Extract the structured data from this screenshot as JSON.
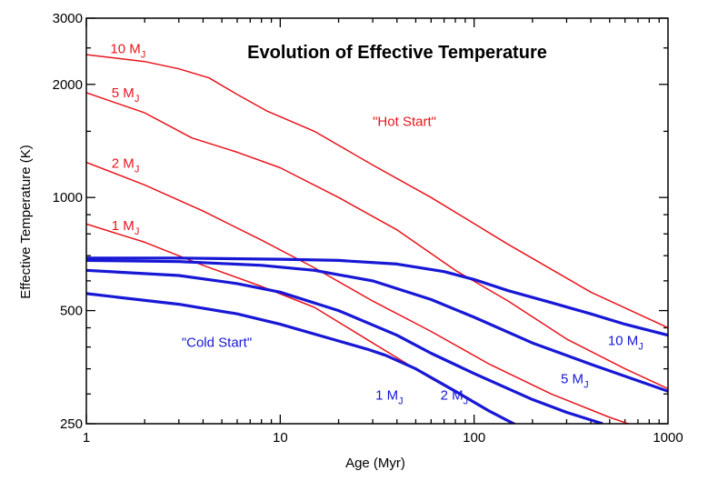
{
  "chart_data": {
    "type": "line",
    "title": "Evolution of Effective Temperature",
    "xlabel": "Age (Myr)",
    "ylabel": "Effective Temperature (K)",
    "xscale": "log",
    "yscale": "log",
    "xlim": [
      1,
      1000
    ],
    "ylim": [
      250,
      3000
    ],
    "x_ticks": [
      {
        "value": 1,
        "label": "1"
      },
      {
        "value": 10,
        "label": "10"
      },
      {
        "value": 100,
        "label": "100"
      },
      {
        "value": 1000,
        "label": "1000"
      }
    ],
    "y_ticks": [
      {
        "value": 250,
        "label": "250"
      },
      {
        "value": 500,
        "label": "500"
      },
      {
        "value": 1000,
        "label": "1000"
      },
      {
        "value": 2000,
        "label": "2000"
      },
      {
        "value": 3000,
        "label": "3000"
      }
    ],
    "colors": {
      "hot": "#e8141c",
      "cold": "#1717d6"
    },
    "series": [
      {
        "name": "10 MJ hot",
        "group": "hot",
        "x": [
          1,
          2,
          3,
          4.3,
          6,
          8.5,
          15,
          30,
          60,
          150,
          400,
          1000
        ],
        "y": [
          2400,
          2300,
          2200,
          2080,
          1880,
          1700,
          1500,
          1220,
          1000,
          750,
          560,
          450
        ]
      },
      {
        "name": "5 MJ hot",
        "group": "hot",
        "x": [
          1,
          2,
          3.5,
          6,
          10,
          20,
          40,
          80,
          150,
          300,
          600,
          1000
        ],
        "y": [
          1900,
          1680,
          1440,
          1320,
          1200,
          1000,
          820,
          640,
          530,
          420,
          350,
          310
        ]
      },
      {
        "name": "2 MJ hot",
        "group": "hot",
        "x": [
          1,
          2,
          4,
          8,
          15,
          30,
          60,
          120,
          250,
          500,
          1000
        ],
        "y": [
          1240,
          1080,
          920,
          770,
          650,
          530,
          440,
          360,
          300,
          260,
          230
        ]
      },
      {
        "name": "1 MJ hot",
        "group": "hot",
        "x": [
          1,
          2,
          4,
          8,
          15,
          30,
          60,
          120,
          250
        ],
        "y": [
          850,
          760,
          660,
          580,
          510,
          410,
          330,
          270,
          225
        ]
      },
      {
        "name": "10 MJ cold",
        "group": "cold",
        "x": [
          1,
          3,
          10,
          20,
          40,
          70,
          100,
          150,
          250,
          400,
          600,
          1000
        ],
        "y": [
          690,
          690,
          685,
          680,
          665,
          635,
          605,
          565,
          525,
          490,
          460,
          430
        ]
      },
      {
        "name": "5 MJ cold",
        "group": "cold",
        "x": [
          1,
          3,
          8,
          15,
          30,
          60,
          100,
          200,
          400,
          1000
        ],
        "y": [
          680,
          675,
          660,
          640,
          600,
          535,
          480,
          410,
          360,
          305
        ]
      },
      {
        "name": "2 MJ cold",
        "group": "cold",
        "x": [
          1,
          3,
          6,
          10,
          20,
          40,
          60,
          100,
          200,
          300,
          460
        ],
        "y": [
          640,
          620,
          590,
          560,
          500,
          430,
          385,
          340,
          290,
          268,
          250
        ]
      },
      {
        "name": "1 MJ cold",
        "group": "cold",
        "x": [
          1,
          3,
          6,
          10,
          20,
          28,
          35,
          50,
          80,
          120,
          160
        ],
        "y": [
          555,
          520,
          490,
          460,
          415,
          395,
          380,
          350,
          305,
          270,
          250
        ]
      }
    ],
    "annotations": [
      {
        "group": "hot",
        "text": "10 M",
        "sub": "J",
        "x": 1.33,
        "y": 2420
      },
      {
        "group": "hot",
        "text": "5 M",
        "sub": "J",
        "x": 1.35,
        "y": 1850
      },
      {
        "group": "hot",
        "text": "2 M",
        "sub": "J",
        "x": 1.35,
        "y": 1200
      },
      {
        "group": "hot",
        "text": "1 M",
        "sub": "J",
        "x": 1.35,
        "y": 820
      },
      {
        "group": "hot",
        "text": "\"Hot Start\"",
        "sub": "",
        "x": 30,
        "y": 1550
      },
      {
        "group": "cold",
        "text": "\"Cold Start\"",
        "sub": "",
        "x": 3.1,
        "y": 400
      },
      {
        "group": "cold",
        "text": "10 M",
        "sub": "J",
        "x": 490,
        "y": 405
      },
      {
        "group": "cold",
        "text": "5 M",
        "sub": "J",
        "x": 280,
        "y": 320
      },
      {
        "group": "cold",
        "text": "2 M",
        "sub": "J",
        "x": 67,
        "y": 290
      },
      {
        "group": "cold",
        "text": "1 M",
        "sub": "J",
        "x": 31,
        "y": 290
      }
    ]
  }
}
